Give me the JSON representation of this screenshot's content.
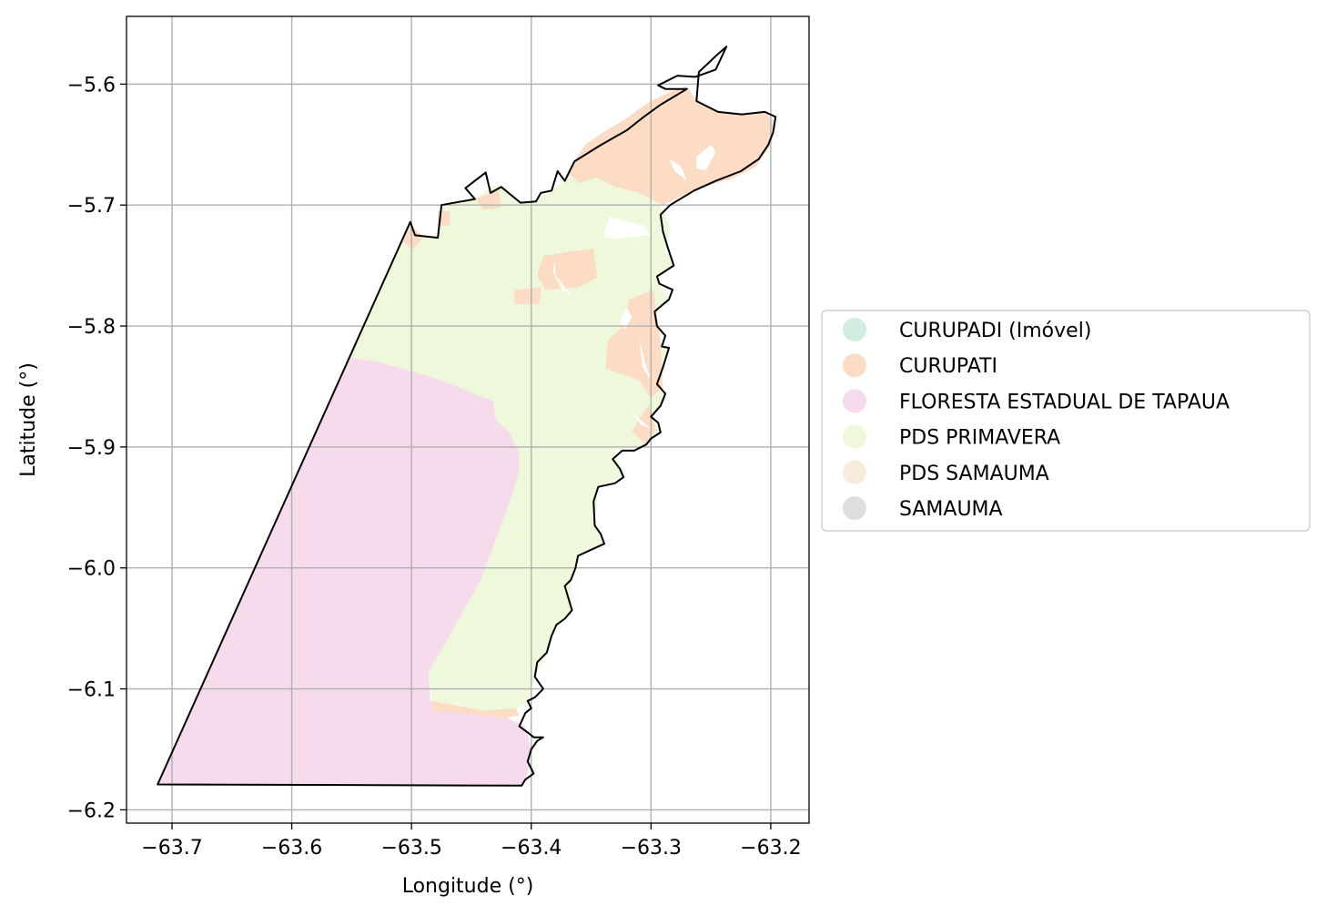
{
  "chart_data": {
    "type": "map",
    "xlabel": "Longitude (°)",
    "ylabel": "Latitude (°)",
    "xlim": [
      -63.738,
      -63.168
    ],
    "ylim": [
      -6.211,
      -5.544
    ],
    "grid": true,
    "xticks": [
      -63.7,
      -63.6,
      -63.5,
      -63.4,
      -63.3,
      -63.2
    ],
    "yticks": [
      -6.2,
      -6.1,
      -6.0,
      -5.9,
      -5.8,
      -5.7,
      -5.6
    ],
    "xtick_labels": [
      "−63.7",
      "−63.6",
      "−63.5",
      "−63.4",
      "−63.3",
      "−63.2"
    ],
    "ytick_labels": [
      "−6.2",
      "−6.1",
      "−6.0",
      "−5.9",
      "−5.8",
      "−5.7",
      "−5.6"
    ],
    "legend_position": "center-right, outside plot",
    "legend": [
      {
        "label": "CURUPADI (Imóvel)",
        "color": "#d2ece0"
      },
      {
        "label": "CURUPATI",
        "color": "#fddcc6"
      },
      {
        "label": "FLORESTA ESTADUAL DE TAPAUA",
        "color": "#f5dbec"
      },
      {
        "label": "PDS PRIMAVERA",
        "color": "#eef8da"
      },
      {
        "label": "PDS SAMAUMA",
        "color": "#f7ebdb"
      },
      {
        "label": "SAMAUMA",
        "color": "#dedede"
      }
    ],
    "regions": [
      {
        "name": "FLORESTA ESTADUAL DE TAPAUA",
        "color": "#f5dbec",
        "coords": [
          [
            -63.712,
            -6.179
          ],
          [
            -63.552,
            -5.826
          ],
          [
            -63.53,
            -5.829
          ],
          [
            -63.48,
            -5.843
          ],
          [
            -63.432,
            -5.862
          ],
          [
            -63.429,
            -5.878
          ],
          [
            -63.418,
            -5.888
          ],
          [
            -63.41,
            -5.905
          ],
          [
            -63.41,
            -5.92
          ],
          [
            -63.418,
            -5.945
          ],
          [
            -63.442,
            -6.01
          ],
          [
            -63.486,
            -6.087
          ],
          [
            -63.484,
            -6.11
          ],
          [
            -63.482,
            -6.117
          ],
          [
            -63.422,
            -6.123
          ],
          [
            -63.405,
            -6.131
          ],
          [
            -63.4,
            -6.15
          ],
          [
            -63.403,
            -6.17
          ],
          [
            -63.408,
            -6.18
          ]
        ]
      },
      {
        "name": "PDS PRIMAVERA",
        "color": "#eef8da",
        "coords": [
          [
            -63.552,
            -5.826
          ],
          [
            -63.501,
            -5.714
          ],
          [
            -63.497,
            -5.725
          ],
          [
            -63.478,
            -5.727
          ],
          [
            -63.475,
            -5.7
          ],
          [
            -63.447,
            -5.695
          ],
          [
            -63.432,
            -5.684
          ],
          [
            -63.425,
            -5.685
          ],
          [
            -63.409,
            -5.698
          ],
          [
            -63.396,
            -5.697
          ],
          [
            -63.383,
            -5.688
          ],
          [
            -63.372,
            -5.68
          ],
          [
            -63.364,
            -5.664
          ],
          [
            -63.343,
            -5.651
          ],
          [
            -63.32,
            -5.664
          ],
          [
            -63.3,
            -5.683
          ],
          [
            -63.292,
            -5.701
          ],
          [
            -63.284,
            -5.718
          ],
          [
            -63.288,
            -5.738
          ],
          [
            -63.281,
            -5.75
          ],
          [
            -63.295,
            -5.759
          ],
          [
            -63.291,
            -5.77
          ],
          [
            -63.285,
            -5.778
          ],
          [
            -63.297,
            -5.788
          ],
          [
            -63.295,
            -5.812
          ],
          [
            -63.285,
            -5.818
          ],
          [
            -63.29,
            -5.834
          ],
          [
            -63.295,
            -5.848
          ],
          [
            -63.287,
            -5.86
          ],
          [
            -63.3,
            -5.875
          ],
          [
            -63.292,
            -5.888
          ],
          [
            -63.304,
            -5.898
          ],
          [
            -63.332,
            -5.903
          ],
          [
            -63.321,
            -5.923
          ],
          [
            -63.344,
            -5.933
          ],
          [
            -63.347,
            -5.965
          ],
          [
            -63.339,
            -5.98
          ],
          [
            -63.361,
            -5.99
          ],
          [
            -63.367,
            -6.01
          ],
          [
            -63.366,
            -6.035
          ],
          [
            -63.379,
            -6.047
          ],
          [
            -63.387,
            -6.07
          ],
          [
            -63.397,
            -6.09
          ],
          [
            -63.403,
            -6.11
          ],
          [
            -63.422,
            -6.123
          ],
          [
            -63.482,
            -6.117
          ],
          [
            -63.486,
            -6.087
          ],
          [
            -63.442,
            -6.01
          ],
          [
            -63.418,
            -5.945
          ],
          [
            -63.41,
            -5.92
          ],
          [
            -63.41,
            -5.905
          ],
          [
            -63.418,
            -5.888
          ],
          [
            -63.429,
            -5.878
          ],
          [
            -63.432,
            -5.862
          ],
          [
            -63.48,
            -5.843
          ],
          [
            -63.53,
            -5.829
          ]
        ]
      },
      {
        "name": "CURUPATI",
        "color": "#fddcc6",
        "coords": [
          [
            -63.37,
            -5.673
          ],
          [
            -63.355,
            -5.65
          ],
          [
            -63.34,
            -5.64
          ],
          [
            -63.32,
            -5.628
          ],
          [
            -63.305,
            -5.617
          ],
          [
            -63.292,
            -5.61
          ],
          [
            -63.28,
            -5.605
          ],
          [
            -63.27,
            -5.602
          ],
          [
            -63.262,
            -5.614
          ],
          [
            -63.245,
            -5.622
          ],
          [
            -63.225,
            -5.625
          ],
          [
            -63.205,
            -5.623
          ],
          [
            -63.198,
            -5.63
          ],
          [
            -63.2,
            -5.65
          ],
          [
            -63.212,
            -5.668
          ],
          [
            -63.232,
            -5.678
          ],
          [
            -63.26,
            -5.686
          ],
          [
            -63.29,
            -5.7
          ],
          [
            -63.31,
            -5.69
          ],
          [
            -63.33,
            -5.685
          ],
          [
            -63.346,
            -5.677
          ],
          [
            -63.36,
            -5.682
          ]
        ]
      },
      {
        "name": "CURUPATI",
        "color": "#fddcc6",
        "coords": [
          [
            -63.39,
            -5.742
          ],
          [
            -63.365,
            -5.738
          ],
          [
            -63.348,
            -5.736
          ],
          [
            -63.345,
            -5.76
          ],
          [
            -63.36,
            -5.768
          ],
          [
            -63.388,
            -5.77
          ],
          [
            -63.395,
            -5.758
          ]
        ]
      },
      {
        "name": "CURUPATI",
        "color": "#fddcc6",
        "coords": [
          [
            -63.414,
            -5.77
          ],
          [
            -63.392,
            -5.768
          ],
          [
            -63.393,
            -5.782
          ],
          [
            -63.414,
            -5.782
          ]
        ]
      },
      {
        "name": "CURUPATI",
        "color": "#fddcc6",
        "coords": [
          [
            -63.298,
            -5.77
          ],
          [
            -63.318,
            -5.778
          ],
          [
            -63.324,
            -5.8
          ],
          [
            -63.336,
            -5.812
          ],
          [
            -63.338,
            -5.835
          ],
          [
            -63.31,
            -5.845
          ],
          [
            -63.3,
            -5.86
          ],
          [
            -63.29,
            -5.85
          ],
          [
            -63.292,
            -5.812
          ]
        ]
      },
      {
        "name": "CURUPATI",
        "color": "#fddcc6",
        "coords": [
          [
            -63.302,
            -5.865
          ],
          [
            -63.296,
            -5.886
          ],
          [
            -63.304,
            -5.898
          ],
          [
            -63.316,
            -5.887
          ]
        ]
      },
      {
        "name": "CURUPATI",
        "color": "#fddcc6",
        "coords": [
          [
            -63.447,
            -5.695
          ],
          [
            -63.44,
            -5.704
          ],
          [
            -63.425,
            -5.702
          ],
          [
            -63.427,
            -5.687
          ]
        ]
      },
      {
        "name": "CURUPATI",
        "color": "#fddcc6",
        "coords": [
          [
            -63.478,
            -5.705
          ],
          [
            -63.468,
            -5.705
          ],
          [
            -63.468,
            -5.717
          ],
          [
            -63.478,
            -5.717
          ]
        ]
      },
      {
        "name": "CURUPATI",
        "color": "#fddcc6",
        "coords": [
          [
            -63.501,
            -5.717
          ],
          [
            -63.49,
            -5.726
          ],
          [
            -63.499,
            -5.737
          ],
          [
            -63.507,
            -5.73
          ]
        ]
      },
      {
        "name": "CURUPATI",
        "color": "#fddcc6",
        "coords": [
          [
            -63.484,
            -6.11
          ],
          [
            -63.482,
            -6.118
          ],
          [
            -63.422,
            -6.124
          ],
          [
            -63.41,
            -6.122
          ],
          [
            -63.413,
            -6.116
          ],
          [
            -63.44,
            -6.118
          ]
        ]
      }
    ],
    "outline": [
      [
        -63.712,
        -6.179
      ],
      [
        -63.501,
        -5.714
      ],
      [
        -63.497,
        -5.725
      ],
      [
        -63.478,
        -5.727
      ],
      [
        -63.475,
        -5.7
      ],
      [
        -63.447,
        -5.695
      ],
      [
        -63.455,
        -5.686
      ],
      [
        -63.438,
        -5.673
      ],
      [
        -63.434,
        -5.69
      ],
      [
        -63.425,
        -5.685
      ],
      [
        -63.409,
        -5.698
      ],
      [
        -63.396,
        -5.697
      ],
      [
        -63.392,
        -5.69
      ],
      [
        -63.383,
        -5.688
      ],
      [
        -63.378,
        -5.672
      ],
      [
        -63.372,
        -5.68
      ],
      [
        -63.364,
        -5.664
      ],
      [
        -63.343,
        -5.651
      ],
      [
        -63.32,
        -5.638
      ],
      [
        -63.306,
        -5.627
      ],
      [
        -63.292,
        -5.617
      ],
      [
        -63.27,
        -5.604
      ],
      [
        -63.288,
        -5.604
      ],
      [
        -63.294,
        -5.601
      ],
      [
        -63.278,
        -5.593
      ],
      [
        -63.263,
        -5.594
      ],
      [
        -63.246,
        -5.588
      ],
      [
        -63.237,
        -5.569
      ],
      [
        -63.244,
        -5.575
      ],
      [
        -63.26,
        -5.59
      ],
      [
        -63.262,
        -5.614
      ],
      [
        -63.244,
        -5.623
      ],
      [
        -63.224,
        -5.625
      ],
      [
        -63.205,
        -5.623
      ],
      [
        -63.196,
        -5.627
      ],
      [
        -63.198,
        -5.64
      ],
      [
        -63.202,
        -5.65
      ],
      [
        -63.21,
        -5.662
      ],
      [
        -63.225,
        -5.672
      ],
      [
        -63.246,
        -5.68
      ],
      [
        -63.264,
        -5.688
      ],
      [
        -63.284,
        -5.7
      ],
      [
        -63.292,
        -5.708
      ],
      [
        -63.29,
        -5.722
      ],
      [
        -63.286,
        -5.735
      ],
      [
        -63.281,
        -5.75
      ],
      [
        -63.295,
        -5.759
      ],
      [
        -63.293,
        -5.765
      ],
      [
        -63.282,
        -5.77
      ],
      [
        -63.285,
        -5.778
      ],
      [
        -63.297,
        -5.788
      ],
      [
        -63.295,
        -5.8
      ],
      [
        -63.288,
        -5.808
      ],
      [
        -63.291,
        -5.817
      ],
      [
        -63.285,
        -5.818
      ],
      [
        -63.29,
        -5.834
      ],
      [
        -63.295,
        -5.848
      ],
      [
        -63.288,
        -5.856
      ],
      [
        -63.292,
        -5.866
      ],
      [
        -63.3,
        -5.875
      ],
      [
        -63.294,
        -5.88
      ],
      [
        -63.292,
        -5.888
      ],
      [
        -63.3,
        -5.893
      ],
      [
        -63.304,
        -5.898
      ],
      [
        -63.314,
        -5.903
      ],
      [
        -63.324,
        -5.903
      ],
      [
        -63.332,
        -5.91
      ],
      [
        -63.326,
        -5.918
      ],
      [
        -63.323,
        -5.925
      ],
      [
        -63.33,
        -5.93
      ],
      [
        -63.344,
        -5.933
      ],
      [
        -63.348,
        -5.945
      ],
      [
        -63.347,
        -5.965
      ],
      [
        -63.342,
        -5.972
      ],
      [
        -63.339,
        -5.98
      ],
      [
        -63.35,
        -5.985
      ],
      [
        -63.361,
        -5.99
      ],
      [
        -63.363,
        -6.0
      ],
      [
        -63.367,
        -6.01
      ],
      [
        -63.372,
        -6.015
      ],
      [
        -63.366,
        -6.035
      ],
      [
        -63.372,
        -6.042
      ],
      [
        -63.379,
        -6.047
      ],
      [
        -63.383,
        -6.056
      ],
      [
        -63.387,
        -6.07
      ],
      [
        -63.395,
        -6.078
      ],
      [
        -63.397,
        -6.09
      ],
      [
        -63.39,
        -6.1
      ],
      [
        -63.397,
        -6.107
      ],
      [
        -63.403,
        -6.11
      ],
      [
        -63.4,
        -6.116
      ],
      [
        -63.405,
        -6.12
      ],
      [
        -63.41,
        -6.131
      ],
      [
        -63.403,
        -6.136
      ],
      [
        -63.398,
        -6.14
      ],
      [
        -63.39,
        -6.14
      ],
      [
        -63.395,
        -6.143
      ],
      [
        -63.4,
        -6.15
      ],
      [
        -63.403,
        -6.16
      ],
      [
        -63.398,
        -6.17
      ],
      [
        -63.405,
        -6.175
      ],
      [
        -63.408,
        -6.18
      ],
      [
        -63.712,
        -6.179
      ]
    ],
    "holes": [
      [
        [
          -63.262,
          -5.66
        ],
        [
          -63.25,
          -5.65
        ],
        [
          -63.246,
          -5.656
        ],
        [
          -63.254,
          -5.671
        ],
        [
          -63.262,
          -5.67
        ]
      ],
      [
        [
          -63.335,
          -5.71
        ],
        [
          -63.305,
          -5.717
        ],
        [
          -63.3,
          -5.725
        ],
        [
          -63.33,
          -5.728
        ],
        [
          -63.34,
          -5.726
        ]
      ],
      [
        [
          -63.38,
          -5.747
        ],
        [
          -63.38,
          -5.758
        ],
        [
          -63.37,
          -5.77
        ],
        [
          -63.365,
          -5.775
        ],
        [
          -63.374,
          -5.77
        ],
        [
          -63.382,
          -5.755
        ]
      ],
      [
        [
          -63.32,
          -5.785
        ],
        [
          -63.316,
          -5.793
        ],
        [
          -63.322,
          -5.803
        ],
        [
          -63.326,
          -5.795
        ]
      ],
      [
        [
          -63.31,
          -5.81
        ],
        [
          -63.305,
          -5.83
        ],
        [
          -63.3,
          -5.845
        ],
        [
          -63.307,
          -5.834
        ]
      ],
      [
        [
          -63.318,
          -5.87
        ],
        [
          -63.308,
          -5.878
        ],
        [
          -63.3,
          -5.885
        ],
        [
          -63.308,
          -5.882
        ]
      ],
      [
        [
          -63.285,
          -5.662
        ],
        [
          -63.275,
          -5.668
        ],
        [
          -63.27,
          -5.68
        ],
        [
          -63.28,
          -5.672
        ]
      ]
    ]
  }
}
